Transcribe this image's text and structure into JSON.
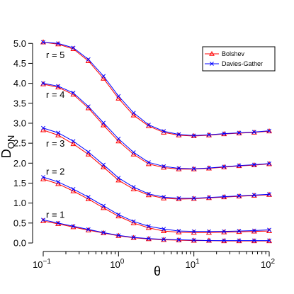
{
  "chart_data": {
    "type": "line",
    "x_scale": "log",
    "xlim": [
      0.1,
      100
    ],
    "ylim": [
      0,
      5.2
    ],
    "xlabel": "θ",
    "ylabel": "D",
    "ylabel_subscript": "ON",
    "x_ticks": [
      {
        "value": 0.1,
        "base": "10",
        "exp": "−1"
      },
      {
        "value": 1,
        "base": "10",
        "exp": "0"
      },
      {
        "value": 10,
        "base": "10",
        "exp": "1"
      },
      {
        "value": 100,
        "base": "10",
        "exp": "2"
      }
    ],
    "y_ticks": [
      "0.0",
      "0.5",
      "1.0",
      "1.5",
      "2.0",
      "2.5",
      "3.0",
      "3.5",
      "4.0",
      "4.5",
      "5.0"
    ],
    "legend_position": "top-right",
    "grid": false,
    "x": [
      0.1,
      0.158,
      0.251,
      0.398,
      0.631,
      1.0,
      1.585,
      2.512,
      3.981,
      6.31,
      10.0,
      15.85,
      25.12,
      39.81,
      63.1,
      100
    ],
    "series": [
      {
        "name": "Bolshev",
        "color": "#ff0000",
        "marker": "triangle",
        "groups": [
          {
            "label": "r = 1",
            "values": [
              0.55,
              0.48,
              0.4,
              0.32,
              0.25,
              0.18,
              0.13,
              0.1,
              0.08,
              0.07,
              0.06,
              0.06,
              0.05,
              0.05,
              0.05,
              0.05
            ]
          },
          {
            "label": "r = 2",
            "values": [
              1.6,
              1.48,
              1.3,
              1.1,
              0.88,
              0.67,
              0.5,
              0.38,
              0.3,
              0.27,
              0.26,
              0.26,
              0.27,
              0.28,
              0.29,
              0.3
            ]
          },
          {
            "label": "r = 3",
            "values": [
              2.83,
              2.7,
              2.48,
              2.22,
              1.9,
              1.57,
              1.35,
              1.2,
              1.12,
              1.1,
              1.11,
              1.13,
              1.15,
              1.17,
              1.19,
              1.21
            ]
          },
          {
            "label": "r = 4",
            "values": [
              3.98,
              3.9,
              3.72,
              3.38,
              2.95,
              2.55,
              2.22,
              1.98,
              1.89,
              1.85,
              1.85,
              1.87,
              1.9,
              1.93,
              1.95,
              1.98
            ]
          },
          {
            "label": "r = 5",
            "values": [
              5.03,
              4.98,
              4.86,
              4.56,
              4.12,
              3.62,
              3.2,
              2.93,
              2.77,
              2.7,
              2.68,
              2.7,
              2.73,
              2.75,
              2.77,
              2.8
            ]
          }
        ]
      },
      {
        "name": "Davies-Gather",
        "color": "#0000ff",
        "marker": "x",
        "groups": [
          {
            "label": "r = 1",
            "values": [
              0.58,
              0.5,
              0.42,
              0.34,
              0.26,
              0.19,
              0.14,
              0.11,
              0.09,
              0.08,
              0.07,
              0.06,
              0.06,
              0.06,
              0.06,
              0.06
            ]
          },
          {
            "label": "r = 2",
            "values": [
              1.65,
              1.53,
              1.35,
              1.15,
              0.93,
              0.71,
              0.54,
              0.42,
              0.35,
              0.3,
              0.29,
              0.29,
              0.29,
              0.3,
              0.31,
              0.33
            ]
          },
          {
            "label": "r = 3",
            "values": [
              2.88,
              2.76,
              2.55,
              2.28,
              1.96,
              1.63,
              1.4,
              1.23,
              1.15,
              1.12,
              1.12,
              1.14,
              1.16,
              1.18,
              1.2,
              1.22
            ]
          },
          {
            "label": "r = 4",
            "values": [
              4.0,
              3.93,
              3.76,
              3.42,
              3.01,
              2.61,
              2.27,
              2.02,
              1.92,
              1.87,
              1.86,
              1.88,
              1.91,
              1.94,
              1.96,
              1.99
            ]
          },
          {
            "label": "r = 5",
            "values": [
              5.03,
              5.0,
              4.89,
              4.6,
              4.18,
              3.68,
              3.26,
              2.96,
              2.8,
              2.72,
              2.69,
              2.71,
              2.74,
              2.76,
              2.78,
              2.81
            ]
          }
        ]
      }
    ],
    "annotations": [
      {
        "text": "r = 1",
        "x": 0.1,
        "y": 0.72
      },
      {
        "text": "r = 2",
        "x": 0.1,
        "y": 1.8
      },
      {
        "text": "r = 3",
        "x": 0.1,
        "y": 2.5
      },
      {
        "text": "r = 4",
        "x": 0.1,
        "y": 3.73
      },
      {
        "text": "r = 5",
        "x": 0.1,
        "y": 4.72
      }
    ]
  }
}
